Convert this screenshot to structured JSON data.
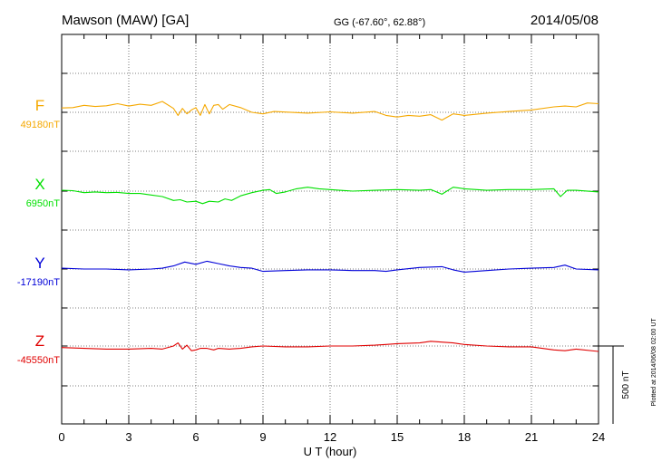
{
  "header": {
    "station": "Mawson (MAW)  [GA]",
    "coords": "GG (-67.60°,  62.88°)",
    "date": "2014/05/08"
  },
  "plotted_note": "Plotted at 2014/06/08 02:00 UT",
  "scale_label": "500 nT",
  "chart_data": {
    "type": "line",
    "xlabel": "U T (hour)",
    "xlim": [
      0,
      24
    ],
    "xticks": [
      0,
      3,
      6,
      9,
      12,
      15,
      18,
      21,
      24
    ],
    "scale_bar_nT": 500,
    "series": [
      {
        "name": "F",
        "baseline_label": "49180nT",
        "color": "#f5a800",
        "points": [
          [
            0,
            28
          ],
          [
            0.5,
            30
          ],
          [
            1,
            45
          ],
          [
            1.5,
            37
          ],
          [
            2,
            42
          ],
          [
            2.5,
            55
          ],
          [
            3,
            40
          ],
          [
            3.5,
            52
          ],
          [
            4,
            45
          ],
          [
            4.5,
            70
          ],
          [
            5,
            25
          ],
          [
            5.2,
            -20
          ],
          [
            5.4,
            25
          ],
          [
            5.6,
            -10
          ],
          [
            5.8,
            15
          ],
          [
            6,
            30
          ],
          [
            6.2,
            -20
          ],
          [
            6.4,
            50
          ],
          [
            6.6,
            -10
          ],
          [
            6.8,
            45
          ],
          [
            7,
            50
          ],
          [
            7.2,
            20
          ],
          [
            7.5,
            50
          ],
          [
            8,
            30
          ],
          [
            8.5,
            0
          ],
          [
            9,
            -10
          ],
          [
            9.5,
            5
          ],
          [
            10,
            2
          ],
          [
            11,
            -5
          ],
          [
            12,
            3
          ],
          [
            13,
            -5
          ],
          [
            14,
            5
          ],
          [
            14.5,
            -20
          ],
          [
            15,
            -30
          ],
          [
            15.5,
            -20
          ],
          [
            16,
            -25
          ],
          [
            16.5,
            -15
          ],
          [
            17,
            -50
          ],
          [
            17.5,
            -10
          ],
          [
            18,
            -20
          ],
          [
            19,
            -5
          ],
          [
            20,
            5
          ],
          [
            21,
            15
          ],
          [
            22,
            35
          ],
          [
            22.5,
            40
          ],
          [
            23,
            35
          ],
          [
            23.5,
            60
          ],
          [
            24,
            55
          ]
        ]
      },
      {
        "name": "X",
        "baseline_label": "6950nT",
        "color": "#00e000",
        "points": [
          [
            0,
            5
          ],
          [
            0.5,
            3
          ],
          [
            1,
            -10
          ],
          [
            1.5,
            -5
          ],
          [
            2,
            -10
          ],
          [
            2.5,
            -8
          ],
          [
            3,
            -15
          ],
          [
            3.5,
            -15
          ],
          [
            4,
            -25
          ],
          [
            4.5,
            -35
          ],
          [
            5,
            -60
          ],
          [
            5.3,
            -55
          ],
          [
            5.6,
            -70
          ],
          [
            6,
            -65
          ],
          [
            6.3,
            -80
          ],
          [
            6.6,
            -65
          ],
          [
            7,
            -70
          ],
          [
            7.3,
            -50
          ],
          [
            7.6,
            -60
          ],
          [
            8,
            -30
          ],
          [
            8.5,
            -10
          ],
          [
            9,
            5
          ],
          [
            9.3,
            10
          ],
          [
            9.6,
            -15
          ],
          [
            10,
            -5
          ],
          [
            10.5,
            15
          ],
          [
            11,
            25
          ],
          [
            11.5,
            15
          ],
          [
            12,
            10
          ],
          [
            13,
            0
          ],
          [
            14,
            5
          ],
          [
            15,
            10
          ],
          [
            16,
            5
          ],
          [
            16.5,
            10
          ],
          [
            17,
            -20
          ],
          [
            17.5,
            25
          ],
          [
            18,
            15
          ],
          [
            19,
            5
          ],
          [
            20,
            10
          ],
          [
            21,
            10
          ],
          [
            22,
            15
          ],
          [
            22.3,
            -35
          ],
          [
            22.6,
            5
          ],
          [
            23,
            5
          ],
          [
            24,
            -5
          ]
        ]
      },
      {
        "name": "Y",
        "baseline_label": "-17190nT",
        "color": "#0000d8",
        "points": [
          [
            0,
            5
          ],
          [
            1,
            0
          ],
          [
            2,
            0
          ],
          [
            3,
            -5
          ],
          [
            4,
            0
          ],
          [
            4.5,
            5
          ],
          [
            5,
            20
          ],
          [
            5.5,
            45
          ],
          [
            6,
            30
          ],
          [
            6.5,
            50
          ],
          [
            7,
            35
          ],
          [
            7.5,
            20
          ],
          [
            8,
            10
          ],
          [
            8.5,
            5
          ],
          [
            9,
            -15
          ],
          [
            10,
            -10
          ],
          [
            11,
            -5
          ],
          [
            12,
            -5
          ],
          [
            13,
            -10
          ],
          [
            14,
            -10
          ],
          [
            14.5,
            -15
          ],
          [
            15,
            -5
          ],
          [
            16,
            10
          ],
          [
            17,
            15
          ],
          [
            17.5,
            -5
          ],
          [
            18,
            -20
          ],
          [
            19,
            -10
          ],
          [
            20,
            0
          ],
          [
            21,
            5
          ],
          [
            22,
            10
          ],
          [
            22.5,
            25
          ],
          [
            23,
            0
          ],
          [
            24,
            -5
          ]
        ]
      },
      {
        "name": "Z",
        "baseline_label": "-45550nT",
        "color": "#e00000",
        "points": [
          [
            0,
            -10
          ],
          [
            1,
            -15
          ],
          [
            2,
            -20
          ],
          [
            3,
            -20
          ],
          [
            4,
            -15
          ],
          [
            4.5,
            -20
          ],
          [
            5,
            0
          ],
          [
            5.2,
            20
          ],
          [
            5.4,
            -20
          ],
          [
            5.6,
            5
          ],
          [
            5.8,
            -30
          ],
          [
            6,
            -25
          ],
          [
            6.2,
            -15
          ],
          [
            6.5,
            -15
          ],
          [
            6.8,
            -25
          ],
          [
            7,
            -15
          ],
          [
            7.5,
            -20
          ],
          [
            8,
            -15
          ],
          [
            8.5,
            -5
          ],
          [
            9,
            0
          ],
          [
            10,
            -5
          ],
          [
            11,
            -5
          ],
          [
            12,
            0
          ],
          [
            13,
            0
          ],
          [
            14,
            5
          ],
          [
            14.5,
            10
          ],
          [
            15,
            15
          ],
          [
            16,
            20
          ],
          [
            16.5,
            30
          ],
          [
            17,
            25
          ],
          [
            17.5,
            20
          ],
          [
            18,
            10
          ],
          [
            19,
            0
          ],
          [
            20,
            -5
          ],
          [
            21,
            -5
          ],
          [
            22,
            -25
          ],
          [
            22.5,
            -30
          ],
          [
            23,
            -20
          ],
          [
            24,
            -35
          ]
        ]
      }
    ]
  }
}
